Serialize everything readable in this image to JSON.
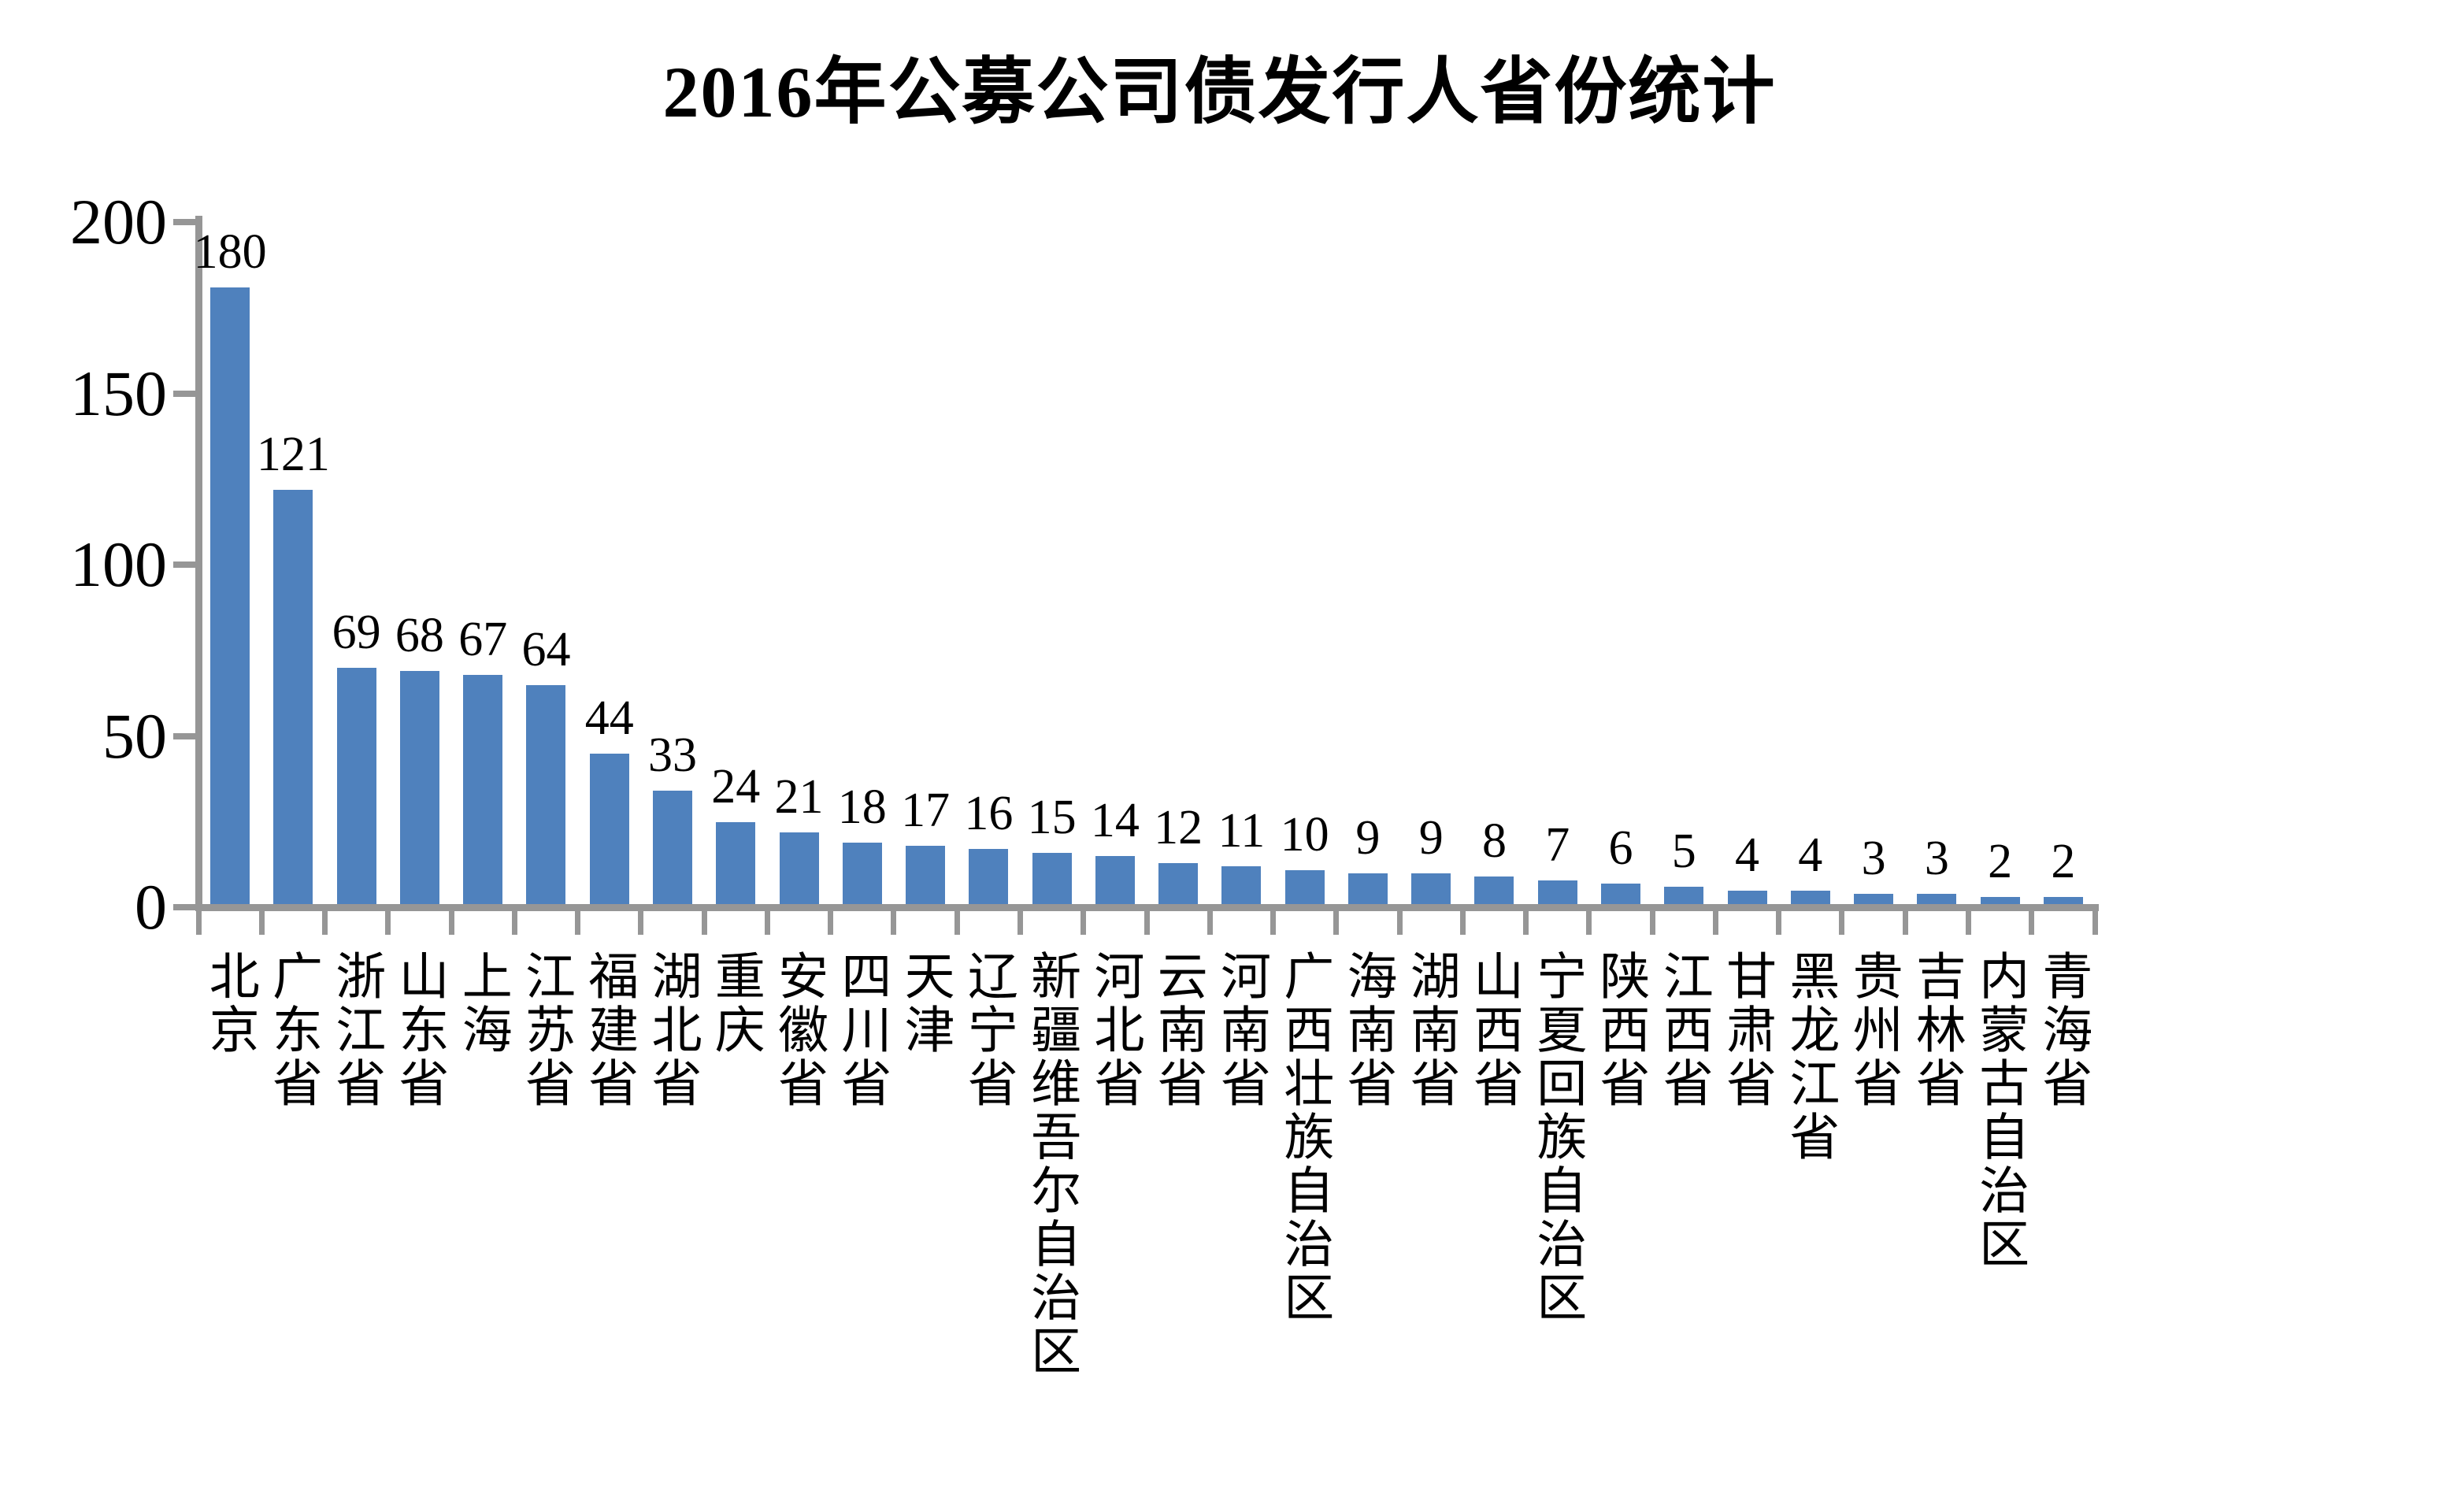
{
  "chart_data": {
    "type": "bar",
    "title": "2016年公募公司债发行人省份统计",
    "categories": [
      "北京",
      "广东省",
      "浙江省",
      "山东省",
      "上海",
      "江苏省",
      "福建省",
      "湖北省",
      "重庆",
      "安徽省",
      "四川省",
      "天津",
      "辽宁省",
      "新疆维吾尔自治区",
      "河北省",
      "云南省",
      "河南省",
      "广西壮族自治区",
      "海南省",
      "湖南省",
      "山西省",
      "宁夏回族自治区",
      "陕西省",
      "江西省",
      "甘肃省",
      "黑龙江省",
      "贵州省",
      "吉林省",
      "内蒙古自治区",
      "青海省"
    ],
    "values": [
      180,
      121,
      69,
      68,
      67,
      64,
      44,
      33,
      24,
      21,
      18,
      17,
      16,
      15,
      14,
      12,
      11,
      10,
      9,
      9,
      8,
      7,
      6,
      5,
      4,
      4,
      3,
      3,
      2,
      2
    ],
    "xlabel": "",
    "ylabel": "",
    "ylim": [
      0,
      200
    ],
    "yticks": [
      0,
      50,
      100,
      150,
      200
    ],
    "grid": false,
    "legend": false,
    "data_labels": true,
    "bar_color": "#4F81BD",
    "axis_color": "#969696",
    "text_color": "#000000",
    "background": "#FFFFFF"
  }
}
